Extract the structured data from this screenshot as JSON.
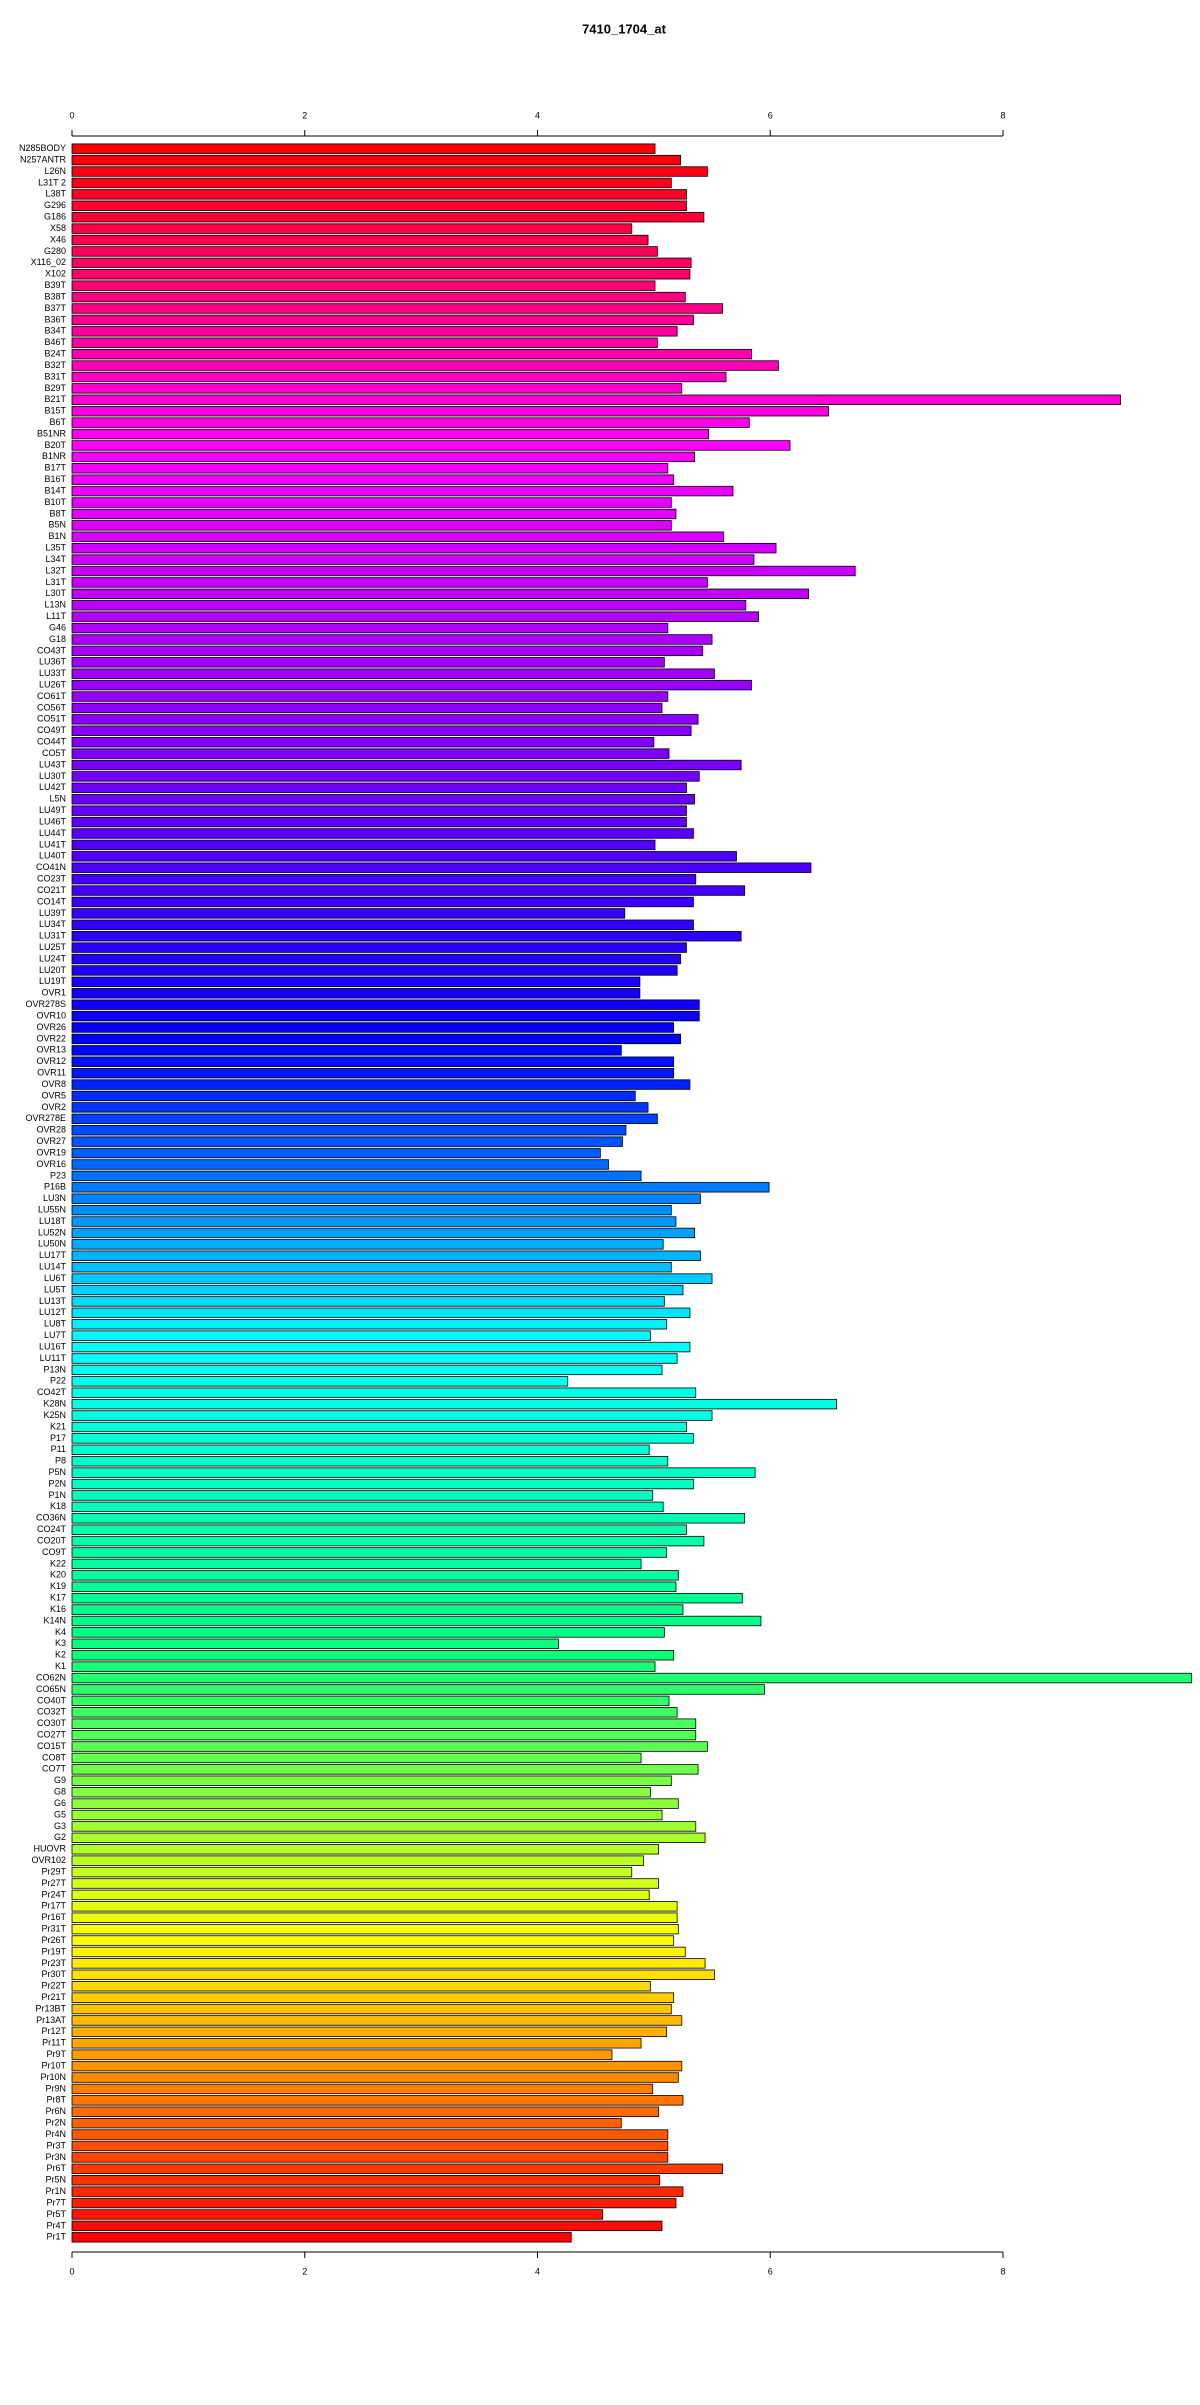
{
  "chart_data": {
    "type": "barh",
    "title": "7410_1704_at",
    "categories": [
      "N285BODY",
      "N257ANTR",
      "L26N",
      "L31T 2",
      "L38T",
      "G296",
      "G186",
      "X58",
      "X46",
      "G280",
      "X116_02",
      "X102",
      "B39T",
      "B38T",
      "B37T",
      "B36T",
      "B34T",
      "B46T",
      "B24T",
      "B32T",
      "B31T",
      "B29T",
      "B21T",
      "B15T",
      "B6T",
      "B51NR",
      "B20T",
      "B1NR",
      "B17T",
      "B16T",
      "B14T",
      "B10T",
      "B8T",
      "B5N",
      "B1N",
      "L35T",
      "L34T",
      "L32T",
      "L31T",
      "L30T",
      "L13N",
      "L11T",
      "G46",
      "G18",
      "CO43T",
      "LU36T",
      "LU33T",
      "LU26T",
      "CO61T",
      "CO56T",
      "CO51T",
      "CO49T",
      "CO44T",
      "CO5T",
      "LU43T",
      "LU30T",
      "LU42T",
      "L5N",
      "LU49T",
      "LU46T",
      "LU44T",
      "LU41T",
      "LU40T",
      "CO41N",
      "CO23T",
      "CO21T",
      "CO14T",
      "LU39T",
      "LU34T",
      "LU31T",
      "LU25T",
      "LU24T",
      "LU20T",
      "LU19T",
      "OVR1",
      "OVR278S",
      "OVR10",
      "OVR26",
      "OVR22",
      "OVR13",
      "OVR12",
      "OVR11",
      "OVR8",
      "OVR5",
      "OVR2",
      "OVR278E",
      "OVR28",
      "OVR27",
      "OVR19",
      "OVR16",
      "P23",
      "P16B",
      "LU3N",
      "LU55N",
      "LU18T",
      "LU52N",
      "LU50N",
      "LU17T",
      "LU14T",
      "LU6T",
      "LU5T",
      "LU13T",
      "LU12T",
      "LU8T",
      "LU7T",
      "LU16T",
      "LU11T",
      "P13N",
      "P22",
      "CO42T",
      "K28N",
      "K25N",
      "K21",
      "P17",
      "P11",
      "P8",
      "P5N",
      "P2N",
      "P1N",
      "K18",
      "CO36N",
      "CO24T",
      "CO20T",
      "CO9T",
      "K22",
      "K20",
      "K19",
      "K17",
      "K16",
      "K14N",
      "K4",
      "K3",
      "K2",
      "K1",
      "CO62N",
      "CO65N",
      "CO40T",
      "CO32T",
      "CO30T",
      "CO27T",
      "CO15T",
      "CO8T",
      "CO7T",
      "G9",
      "G8",
      "G6",
      "G5",
      "G3",
      "G2",
      "HUOVR",
      "OVR102",
      "Pr29T",
      "Pr27T",
      "Pr24T",
      "Pr17T",
      "Pr16T",
      "Pr31T",
      "Pr26T",
      "Pr19T",
      "Pr23T",
      "Pr30T",
      "Pr22T",
      "Pr21T",
      "Pr13BT",
      "Pr13AT",
      "Pr12T",
      "Pr11T",
      "Pr9T",
      "Pr10T",
      "Pr10N",
      "Pr9N",
      "Pr8T",
      "Pr6N",
      "Pr2N",
      "Pr4N",
      "Pr3T",
      "Pr3N",
      "Pr6T",
      "Pr5N",
      "Pr1N",
      "Pr7T",
      "Pr5T",
      "Pr4T",
      "Pr1T"
    ],
    "values": [
      5.01,
      5.23,
      5.46,
      5.15,
      5.28,
      5.28,
      5.43,
      4.81,
      4.95,
      5.03,
      5.32,
      5.31,
      5.01,
      5.27,
      5.59,
      5.34,
      5.2,
      5.03,
      5.84,
      6.07,
      5.62,
      5.24,
      9.01,
      6.5,
      5.82,
      5.47,
      6.17,
      5.35,
      5.12,
      5.17,
      5.68,
      5.15,
      5.19,
      5.15,
      5.6,
      6.05,
      5.86,
      6.73,
      5.46,
      6.33,
      5.79,
      5.9,
      5.12,
      5.5,
      5.42,
      5.09,
      5.52,
      5.84,
      5.12,
      5.07,
      5.38,
      5.32,
      5.0,
      5.13,
      5.75,
      5.39,
      5.28,
      5.35,
      5.28,
      5.28,
      5.34,
      5.01,
      5.71,
      6.35,
      5.36,
      5.78,
      5.34,
      4.75,
      5.34,
      5.75,
      5.28,
      5.23,
      5.2,
      4.88,
      4.88,
      5.39,
      5.39,
      5.17,
      5.23,
      4.72,
      5.17,
      5.17,
      5.31,
      4.84,
      4.95,
      5.03,
      4.76,
      4.73,
      4.54,
      4.61,
      4.89,
      5.99,
      5.4,
      5.15,
      5.19,
      5.35,
      5.08,
      5.4,
      5.15,
      5.5,
      5.25,
      5.09,
      5.31,
      5.11,
      4.97,
      5.31,
      5.2,
      5.07,
      4.26,
      5.36,
      6.57,
      5.5,
      5.28,
      5.34,
      4.96,
      5.12,
      5.87,
      5.34,
      4.99,
      5.08,
      5.78,
      5.28,
      5.43,
      5.11,
      4.89,
      5.21,
      5.19,
      5.76,
      5.25,
      5.92,
      5.09,
      4.18,
      5.17,
      5.01,
      9.62,
      5.95,
      5.13,
      5.2,
      5.36,
      5.36,
      5.46,
      4.89,
      5.38,
      5.15,
      4.97,
      5.21,
      5.07,
      5.36,
      5.44,
      5.04,
      4.91,
      4.81,
      5.04,
      4.96,
      5.2,
      5.2,
      5.21,
      5.17,
      5.27,
      5.44,
      5.52,
      4.97,
      5.17,
      5.15,
      5.24,
      5.11,
      4.89,
      4.64,
      5.24,
      5.21,
      4.99,
      5.25,
      5.04,
      4.72,
      5.12,
      5.12,
      5.12,
      5.59,
      5.05,
      5.25,
      5.19,
      4.56,
      5.07,
      4.29
    ],
    "color_stops": [
      "#ff0000",
      "#ff00ff",
      "#8000ff",
      "#0000ff",
      "#00ffff",
      "#00ff80",
      "#ffff00",
      "#ff0000"
    ],
    "xlim": [
      0,
      9.65
    ],
    "xticks": [
      0,
      2,
      4,
      6,
      8
    ]
  }
}
